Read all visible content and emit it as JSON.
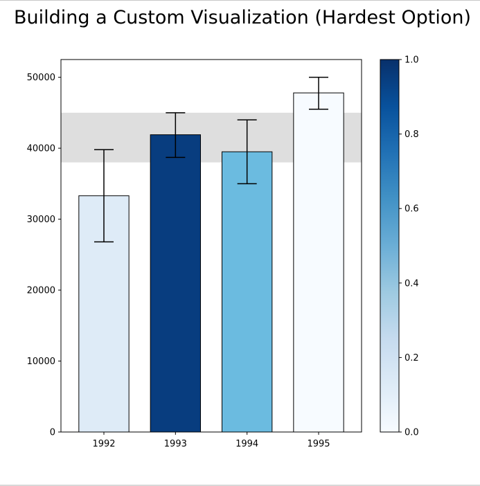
{
  "title": "Building a Custom Visualization (Hardest Option)",
  "chart_data": {
    "type": "bar",
    "title": "Building a Custom Visualization (Hardest Option)",
    "xlabel": "",
    "ylabel": "",
    "categories": [
      "1992",
      "1993",
      "1994",
      "1995"
    ],
    "values": [
      33300,
      41900,
      39500,
      47800
    ],
    "error_low": [
      26800,
      38700,
      35000,
      45500
    ],
    "error_high": [
      39800,
      45000,
      44000,
      50000
    ],
    "bar_colors": [
      "#deebf7",
      "#083d7f",
      "#6bbbe0",
      "#f7fbff"
    ],
    "ylim": [
      0,
      52500
    ],
    "yticks": [
      0,
      10000,
      20000,
      30000,
      40000,
      50000
    ],
    "ytick_labels": [
      "0",
      "10000",
      "20000",
      "30000",
      "40000",
      "50000"
    ],
    "highlight_band": [
      38000,
      45000
    ],
    "highlight_color": "#dedede",
    "grid": false,
    "colorbar": {
      "colormap": "Blues",
      "range": [
        0.0,
        1.0
      ],
      "ticks": [
        0.0,
        0.2,
        0.4,
        0.6,
        0.8,
        1.0
      ],
      "tick_labels": [
        "0.0",
        "0.2",
        "0.4",
        "0.6",
        "0.8",
        "1.0"
      ]
    }
  }
}
